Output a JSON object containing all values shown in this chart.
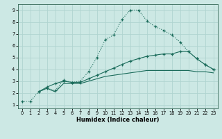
{
  "xlabel": "Humidex (Indice chaleur)",
  "bg_color": "#cce8e4",
  "grid_color": "#b0d4d0",
  "line_color": "#1a6b5a",
  "xlim": [
    -0.5,
    23.5
  ],
  "ylim": [
    0.7,
    9.5
  ],
  "xticks": [
    0,
    1,
    2,
    3,
    4,
    5,
    6,
    7,
    8,
    9,
    10,
    11,
    12,
    13,
    14,
    15,
    16,
    17,
    18,
    19,
    20,
    21,
    22,
    23
  ],
  "yticks": [
    1,
    2,
    3,
    4,
    5,
    6,
    7,
    8,
    9
  ],
  "line1_x": [
    0,
    1,
    2,
    3,
    4,
    5,
    6,
    7,
    8,
    9,
    10,
    11,
    12,
    13,
    14,
    15,
    16,
    17,
    18,
    19,
    20,
    21,
    22,
    23
  ],
  "line1_y": [
    1.3,
    1.3,
    2.1,
    2.4,
    2.2,
    3.1,
    2.9,
    3.0,
    3.8,
    5.0,
    6.5,
    6.9,
    8.2,
    9.0,
    9.0,
    8.1,
    7.6,
    7.3,
    6.9,
    6.3,
    5.5,
    4.9,
    4.4,
    4.0
  ],
  "line2_x": [
    2,
    3,
    4,
    5,
    6,
    7,
    8,
    9,
    10,
    11,
    12,
    13,
    14,
    15,
    16,
    17,
    18,
    19,
    20,
    21,
    22,
    23
  ],
  "line2_y": [
    2.1,
    2.5,
    2.8,
    3.0,
    2.9,
    2.9,
    3.2,
    3.5,
    3.8,
    4.1,
    4.4,
    4.7,
    4.9,
    5.1,
    5.2,
    5.3,
    5.3,
    5.5,
    5.5,
    4.9,
    4.4,
    4.0
  ],
  "line3_x": [
    2,
    3,
    4,
    5,
    6,
    7,
    8,
    9,
    10,
    11,
    12,
    13,
    14,
    15,
    16,
    17,
    18,
    19,
    20,
    21,
    22,
    23
  ],
  "line3_y": [
    2.1,
    2.4,
    2.1,
    2.8,
    2.8,
    2.8,
    3.0,
    3.2,
    3.4,
    3.5,
    3.6,
    3.7,
    3.8,
    3.9,
    3.9,
    3.9,
    3.9,
    3.9,
    3.9,
    3.8,
    3.8,
    3.7
  ]
}
